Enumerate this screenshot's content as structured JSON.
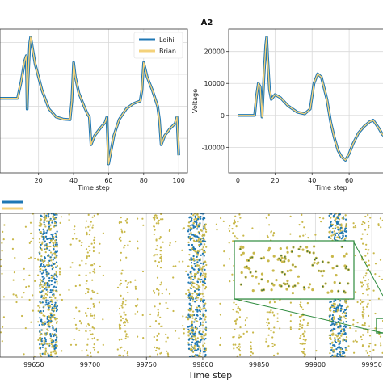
{
  "chart_data": [
    {
      "id": "panel-a1",
      "type": "line",
      "title": "",
      "xlabel": "Time step",
      "ylabel": "",
      "xlim": [
        -2,
        105
      ],
      "ylim": [
        -1.25,
        1.45
      ],
      "xticks": [
        20,
        40,
        60,
        80,
        100
      ],
      "grid": true,
      "legend": "top-right",
      "series": [
        {
          "name": "Loihi",
          "color": "#1f77b4",
          "points": [
            [
              -2,
              0.15
            ],
            [
              8,
              0.15
            ],
            [
              10,
              0.45
            ],
            [
              12,
              0.85
            ],
            [
              13,
              0.95
            ],
            [
              13.5,
              -0.05
            ],
            [
              14,
              0.5
            ],
            [
              15,
              1.2
            ],
            [
              15.5,
              1.3
            ],
            [
              18,
              0.8
            ],
            [
              22,
              0.3
            ],
            [
              26,
              -0.05
            ],
            [
              30,
              -0.2
            ],
            [
              34,
              -0.24
            ],
            [
              38,
              -0.25
            ],
            [
              39,
              0.1
            ],
            [
              40,
              0.82
            ],
            [
              41,
              0.55
            ],
            [
              43,
              0.25
            ],
            [
              46,
              0.0
            ],
            [
              48,
              -0.15
            ],
            [
              49,
              -0.2
            ],
            [
              50,
              -0.72
            ],
            [
              52,
              -0.55
            ],
            [
              55,
              -0.42
            ],
            [
              58,
              -0.3
            ],
            [
              59,
              -0.2
            ],
            [
              60,
              -1.08
            ],
            [
              61,
              -0.9
            ],
            [
              63,
              -0.55
            ],
            [
              66,
              -0.25
            ],
            [
              70,
              -0.05
            ],
            [
              74,
              0.05
            ],
            [
              78,
              0.1
            ],
            [
              79,
              0.3
            ],
            [
              80,
              0.82
            ],
            [
              82,
              0.55
            ],
            [
              85,
              0.3
            ],
            [
              88,
              0.0
            ],
            [
              89,
              -0.25
            ],
            [
              90,
              -0.72
            ],
            [
              92,
              -0.55
            ],
            [
              95,
              -0.42
            ],
            [
              98,
              -0.32
            ],
            [
              99,
              -0.2
            ],
            [
              100,
              -0.92
            ]
          ]
        },
        {
          "name": "Brian",
          "color": "#f4d27a",
          "points": [
            [
              -2,
              0.15
            ],
            [
              8,
              0.15
            ],
            [
              10,
              0.45
            ],
            [
              12,
              0.85
            ],
            [
              13,
              0.95
            ],
            [
              13.5,
              -0.05
            ],
            [
              14,
              0.5
            ],
            [
              15,
              1.2
            ],
            [
              15.5,
              1.3
            ],
            [
              18,
              0.8
            ],
            [
              22,
              0.3
            ],
            [
              26,
              -0.05
            ],
            [
              30,
              -0.2
            ],
            [
              34,
              -0.24
            ],
            [
              38,
              -0.25
            ],
            [
              39,
              0.1
            ],
            [
              40,
              0.82
            ],
            [
              41,
              0.55
            ],
            [
              43,
              0.25
            ],
            [
              46,
              0.0
            ],
            [
              48,
              -0.15
            ],
            [
              49,
              -0.2
            ],
            [
              50,
              -0.72
            ],
            [
              52,
              -0.55
            ],
            [
              55,
              -0.42
            ],
            [
              58,
              -0.3
            ],
            [
              59,
              -0.2
            ],
            [
              60,
              -1.08
            ],
            [
              61,
              -0.9
            ],
            [
              63,
              -0.55
            ],
            [
              66,
              -0.25
            ],
            [
              70,
              -0.05
            ],
            [
              74,
              0.05
            ],
            [
              78,
              0.1
            ],
            [
              79,
              0.3
            ],
            [
              80,
              0.82
            ],
            [
              82,
              0.55
            ],
            [
              85,
              0.3
            ],
            [
              88,
              0.0
            ],
            [
              89,
              -0.25
            ],
            [
              90,
              -0.72
            ],
            [
              92,
              -0.55
            ],
            [
              95,
              -0.42
            ],
            [
              98,
              -0.32
            ],
            [
              99,
              -0.2
            ],
            [
              100,
              -0.92
            ]
          ]
        }
      ]
    },
    {
      "id": "panel-a2",
      "type": "line",
      "title": "A2",
      "xlabel": "Time step",
      "ylabel": "Voltage",
      "xlim": [
        -5,
        80
      ],
      "ylim": [
        -18000,
        27000
      ],
      "xticks": [
        0,
        20,
        40,
        60
      ],
      "yticks": [
        -10000,
        0,
        10000,
        20000
      ],
      "grid": true,
      "series": [
        {
          "name": "Loihi",
          "color": "#1f77b4",
          "points": [
            [
              0,
              0
            ],
            [
              9,
              0
            ],
            [
              10,
              6000
            ],
            [
              11,
              10000
            ],
            [
              12,
              9000
            ],
            [
              13,
              -500
            ],
            [
              14,
              12000
            ],
            [
              15,
              22000
            ],
            [
              15.5,
              24500
            ],
            [
              16,
              18000
            ],
            [
              17,
              8000
            ],
            [
              18,
              5000
            ],
            [
              20,
              6500
            ],
            [
              23,
              5500
            ],
            [
              27,
              3000
            ],
            [
              32,
              1000
            ],
            [
              36,
              500
            ],
            [
              39,
              2000
            ],
            [
              41,
              10000
            ],
            [
              43,
              13000
            ],
            [
              45,
              12000
            ],
            [
              48,
              5000
            ],
            [
              50,
              -2000
            ],
            [
              52,
              -7000
            ],
            [
              54,
              -11000
            ],
            [
              56,
              -13000
            ],
            [
              58,
              -14000
            ],
            [
              60,
              -12000
            ],
            [
              62,
              -9000
            ],
            [
              65,
              -5500
            ],
            [
              68,
              -3500
            ],
            [
              71,
              -2000
            ],
            [
              73,
              -1500
            ],
            [
              76,
              -4000
            ],
            [
              78,
              -6000
            ],
            [
              80,
              -7000
            ]
          ]
        },
        {
          "name": "Brian",
          "color": "#f4d27a",
          "points": [
            [
              0,
              0
            ],
            [
              9,
              0
            ],
            [
              10,
              6000
            ],
            [
              11,
              10000
            ],
            [
              12,
              9000
            ],
            [
              13,
              -500
            ],
            [
              14,
              12000
            ],
            [
              15,
              22000
            ],
            [
              15.5,
              24500
            ],
            [
              16,
              18000
            ],
            [
              17,
              8000
            ],
            [
              18,
              5000
            ],
            [
              20,
              6500
            ],
            [
              23,
              5500
            ],
            [
              27,
              3000
            ],
            [
              32,
              1000
            ],
            [
              36,
              500
            ],
            [
              39,
              2000
            ],
            [
              41,
              10000
            ],
            [
              43,
              13000
            ],
            [
              45,
              12000
            ],
            [
              48,
              5000
            ],
            [
              50,
              -2000
            ],
            [
              52,
              -7000
            ],
            [
              54,
              -11000
            ],
            [
              56,
              -13000
            ],
            [
              58,
              -14000
            ],
            [
              60,
              -12000
            ],
            [
              62,
              -9000
            ],
            [
              65,
              -5500
            ],
            [
              68,
              -3500
            ],
            [
              71,
              -2000
            ],
            [
              73,
              -1500
            ],
            [
              76,
              -4000
            ],
            [
              78,
              -6000
            ],
            [
              80,
              -7000
            ]
          ]
        }
      ]
    },
    {
      "id": "panel-b",
      "type": "scatter",
      "title": "",
      "xlabel": "Time step",
      "ylabel": "",
      "xlim": [
        99620,
        99960
      ],
      "ylim": [
        0,
        100
      ],
      "xticks": [
        99650,
        99700,
        99750,
        99800,
        99850,
        99900,
        99950
      ],
      "grid": true,
      "legend": "top-left",
      "series": [
        {
          "name": "",
          "color": "#1f77b4",
          "role": "loihi-spikes"
        },
        {
          "name": "",
          "color": "#c9b84a",
          "role": "brian-spikes"
        }
      ],
      "dense_bands_x": [
        99663,
        99795,
        99920
      ],
      "inset": {
        "x_range": [
          99855,
          99915
        ],
        "y_range": [
          40,
          75
        ]
      }
    }
  ]
}
